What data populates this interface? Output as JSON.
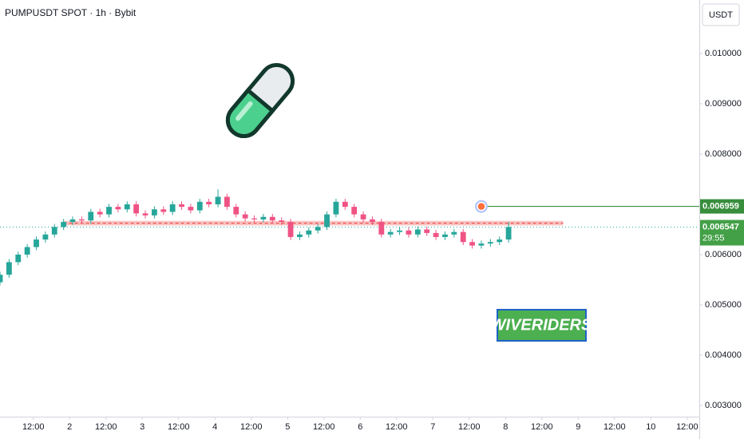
{
  "chart_data": {
    "type": "candlestick",
    "title": "PUMPUSDT SPOT · 1h · Bybit",
    "currency": "USDT",
    "up_color": "#26a69a",
    "down_color": "#ef5384",
    "x": [
      1,
      4,
      7,
      10,
      13,
      16,
      19,
      22,
      25,
      28,
      31,
      34,
      37,
      40,
      43,
      46,
      49,
      52,
      55,
      58,
      61,
      64,
      67,
      70,
      73,
      76,
      79,
      82,
      85,
      88,
      91,
      94,
      97,
      100,
      103,
      106,
      109,
      112,
      115,
      118,
      121,
      124,
      127,
      130,
      133,
      136,
      139,
      142,
      145,
      148,
      151,
      154,
      157,
      160,
      163,
      166,
      169
    ],
    "open": [
      0.00545,
      0.0056,
      0.00585,
      0.006,
      0.00615,
      0.0063,
      0.0064,
      0.00655,
      0.00665,
      0.0067,
      0.00668,
      0.00685,
      0.0068,
      0.00695,
      0.0069,
      0.007,
      0.00682,
      0.00678,
      0.0069,
      0.00685,
      0.007,
      0.00695,
      0.00688,
      0.00705,
      0.007,
      0.00715,
      0.00695,
      0.0068,
      0.00672,
      0.0067,
      0.00675,
      0.00668,
      0.00665,
      0.00635,
      0.0064,
      0.00648,
      0.00655,
      0.0068,
      0.00705,
      0.00695,
      0.0068,
      0.0067,
      0.00665,
      0.0064,
      0.00645,
      0.00648,
      0.0064,
      0.0065,
      0.00643,
      0.00635,
      0.0064,
      0.00645,
      0.00625,
      0.00618,
      0.00622,
      0.00625,
      0.0063
    ],
    "high": [
      0.00566,
      0.00591,
      0.00606,
      0.00621,
      0.00636,
      0.00646,
      0.00661,
      0.00671,
      0.00676,
      0.00676,
      0.00691,
      0.00691,
      0.00701,
      0.00701,
      0.00706,
      0.00706,
      0.00688,
      0.00696,
      0.00696,
      0.00706,
      0.00706,
      0.00701,
      0.00711,
      0.00711,
      0.0073,
      0.00721,
      0.00701,
      0.00686,
      0.00678,
      0.00681,
      0.00681,
      0.00674,
      0.00671,
      0.00646,
      0.00654,
      0.00661,
      0.00686,
      0.00711,
      0.00711,
      0.00701,
      0.00686,
      0.00676,
      0.00671,
      0.00651,
      0.00654,
      0.00654,
      0.00656,
      0.00656,
      0.00649,
      0.00646,
      0.00651,
      0.00651,
      0.00631,
      0.00628,
      0.00631,
      0.00636,
      0.00665
    ],
    "low": [
      0.00539,
      0.00554,
      0.00579,
      0.00594,
      0.00609,
      0.00624,
      0.00634,
      0.00649,
      0.00659,
      0.00662,
      0.00662,
      0.00674,
      0.00674,
      0.00684,
      0.00684,
      0.00676,
      0.00672,
      0.00672,
      0.00679,
      0.00679,
      0.00689,
      0.00682,
      0.00682,
      0.00694,
      0.00694,
      0.00689,
      0.00674,
      0.00666,
      0.00664,
      0.00664,
      0.00662,
      0.00659,
      0.00629,
      0.00629,
      0.00634,
      0.00642,
      0.00649,
      0.00674,
      0.00689,
      0.00674,
      0.00664,
      0.00659,
      0.00634,
      0.00634,
      0.00639,
      0.00634,
      0.00634,
      0.00637,
      0.00629,
      0.00629,
      0.00634,
      0.00619,
      0.00612,
      0.00612,
      0.00616,
      0.00619,
      0.00624
    ],
    "close": [
      0.0056,
      0.00585,
      0.006,
      0.00615,
      0.0063,
      0.0064,
      0.00655,
      0.00665,
      0.0067,
      0.00668,
      0.00685,
      0.0068,
      0.00695,
      0.0069,
      0.007,
      0.00682,
      0.00678,
      0.0069,
      0.00685,
      0.007,
      0.00695,
      0.00688,
      0.00705,
      0.007,
      0.00715,
      0.00695,
      0.0068,
      0.00672,
      0.0067,
      0.00675,
      0.00668,
      0.00665,
      0.00635,
      0.0064,
      0.00648,
      0.00655,
      0.0068,
      0.00705,
      0.00695,
      0.0068,
      0.0067,
      0.00665,
      0.0064,
      0.00645,
      0.00648,
      0.0064,
      0.0065,
      0.00643,
      0.00635,
      0.0064,
      0.00645,
      0.00625,
      0.00618,
      0.00622,
      0.00625,
      0.0063,
      0.00655
    ],
    "xlim": [
      1,
      232
    ],
    "xticks": [
      {
        "value": 12,
        "label": "12:00"
      },
      {
        "value": 24,
        "label": "2"
      },
      {
        "value": 36,
        "label": "12:00"
      },
      {
        "value": 48,
        "label": "3"
      },
      {
        "value": 60,
        "label": "12:00"
      },
      {
        "value": 72,
        "label": "4"
      },
      {
        "value": 84,
        "label": "12:00"
      },
      {
        "value": 96,
        "label": "5"
      },
      {
        "value": 108,
        "label": "12:00"
      },
      {
        "value": 120,
        "label": "6"
      },
      {
        "value": 132,
        "label": "12:00"
      },
      {
        "value": 144,
        "label": "7"
      },
      {
        "value": 156,
        "label": "12:00"
      },
      {
        "value": 168,
        "label": "8"
      },
      {
        "value": 180,
        "label": "12:00"
      },
      {
        "value": 192,
        "label": "9"
      },
      {
        "value": 204,
        "label": "12:00"
      },
      {
        "value": 216,
        "label": "10"
      },
      {
        "value": 228,
        "label": "12:00"
      }
    ],
    "ylim": [
      0.002778,
      0.011063
    ],
    "yticks": [
      {
        "value": 0.003,
        "label": "0.003000"
      },
      {
        "value": 0.004,
        "label": "0.004000"
      },
      {
        "value": 0.005,
        "label": "0.005000"
      },
      {
        "value": 0.006,
        "label": "0.006000"
      },
      {
        "value": 0.008,
        "label": "0.008000"
      },
      {
        "value": 0.009,
        "label": "0.009000"
      },
      {
        "value": 0.01,
        "label": "0.010000"
      }
    ],
    "zone": {
      "low": 0.00658,
      "high": 0.00667,
      "xlim": [
        22,
        187
      ]
    },
    "target": {
      "value": 0.006959,
      "label": "0.006959",
      "x": 160,
      "color": "#388e3c"
    },
    "last_price": {
      "value": 0.006547,
      "label": "0.006547",
      "countdown": "29:55"
    },
    "watermark": "WIVERIDERS"
  }
}
